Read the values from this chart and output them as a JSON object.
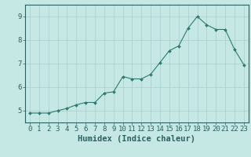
{
  "x": [
    0,
    1,
    2,
    3,
    4,
    5,
    6,
    7,
    8,
    9,
    10,
    11,
    12,
    13,
    14,
    15,
    16,
    17,
    18,
    19,
    20,
    21,
    22,
    23
  ],
  "y": [
    4.9,
    4.9,
    4.9,
    5.0,
    5.1,
    5.25,
    5.35,
    5.35,
    5.75,
    5.8,
    6.45,
    6.35,
    6.35,
    6.55,
    7.05,
    7.55,
    7.75,
    8.5,
    9.0,
    8.65,
    8.45,
    8.45,
    7.6,
    6.95
  ],
  "line_color": "#2d7a70",
  "marker_color": "#2d7a70",
  "bg_color": "#c5e8e5",
  "grid_color": "#a8cece",
  "axis_color": "#2d6060",
  "xlabel": "Humidex (Indice chaleur)",
  "ylim": [
    4.5,
    9.5
  ],
  "xlim": [
    -0.5,
    23.5
  ],
  "yticks": [
    5,
    6,
    7,
    8,
    9
  ],
  "xticks": [
    0,
    1,
    2,
    3,
    4,
    5,
    6,
    7,
    8,
    9,
    10,
    11,
    12,
    13,
    14,
    15,
    16,
    17,
    18,
    19,
    20,
    21,
    22,
    23
  ],
  "font_size": 6.5,
  "label_font_size": 7.5
}
